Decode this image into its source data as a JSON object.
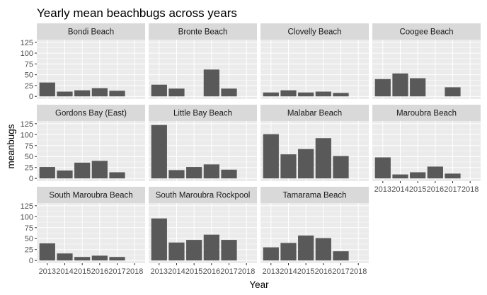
{
  "chart_data": {
    "type": "bar",
    "title": "Yearly mean beachbugs across years",
    "xlabel": "Year",
    "ylabel": "meanbugs",
    "x_ticks": [
      "2013",
      "2014",
      "2015",
      "2016",
      "2017",
      "2018"
    ],
    "y_ticks": [
      0,
      25,
      50,
      75,
      100,
      125
    ],
    "ylim": [
      0,
      125
    ],
    "grid": true,
    "colors": {
      "bar": "#595959",
      "panel_bg": "#ebebeb",
      "strip_bg": "#d9d9d9",
      "grid_major": "#ffffff"
    },
    "facets": [
      {
        "name": "Bondi Beach",
        "data": [
          {
            "year": "2013",
            "value": 32
          },
          {
            "year": "2014",
            "value": 11
          },
          {
            "year": "2015",
            "value": 14
          },
          {
            "year": "2016",
            "value": 19
          },
          {
            "year": "2017",
            "value": 13
          }
        ]
      },
      {
        "name": "Bronte Beach",
        "data": [
          {
            "year": "2013",
            "value": 27
          },
          {
            "year": "2014",
            "value": 18
          },
          {
            "year": "2016",
            "value": 62
          },
          {
            "year": "2017",
            "value": 18
          }
        ]
      },
      {
        "name": "Clovelly Beach",
        "data": [
          {
            "year": "2013",
            "value": 9
          },
          {
            "year": "2014",
            "value": 14
          },
          {
            "year": "2015",
            "value": 9
          },
          {
            "year": "2016",
            "value": 11
          },
          {
            "year": "2017",
            "value": 8
          }
        ]
      },
      {
        "name": "Coogee Beach",
        "data": [
          {
            "year": "2013",
            "value": 40
          },
          {
            "year": "2014",
            "value": 53
          },
          {
            "year": "2015",
            "value": 42
          },
          {
            "year": "2017",
            "value": 21
          }
        ]
      },
      {
        "name": "Gordons Bay (East)",
        "data": [
          {
            "year": "2013",
            "value": 26
          },
          {
            "year": "2014",
            "value": 18
          },
          {
            "year": "2015",
            "value": 36
          },
          {
            "year": "2016",
            "value": 40
          },
          {
            "year": "2017",
            "value": 14
          }
        ]
      },
      {
        "name": "Little Bay Beach",
        "data": [
          {
            "year": "2013",
            "value": 122
          },
          {
            "year": "2014",
            "value": 19
          },
          {
            "year": "2015",
            "value": 26
          },
          {
            "year": "2016",
            "value": 32
          },
          {
            "year": "2017",
            "value": 20
          }
        ]
      },
      {
        "name": "Malabar Beach",
        "data": [
          {
            "year": "2013",
            "value": 101
          },
          {
            "year": "2014",
            "value": 55
          },
          {
            "year": "2015",
            "value": 67
          },
          {
            "year": "2016",
            "value": 92
          },
          {
            "year": "2017",
            "value": 51
          }
        ]
      },
      {
        "name": "Maroubra Beach",
        "data": [
          {
            "year": "2013",
            "value": 48
          },
          {
            "year": "2014",
            "value": 9
          },
          {
            "year": "2015",
            "value": 14
          },
          {
            "year": "2016",
            "value": 27
          },
          {
            "year": "2017",
            "value": 11
          }
        ]
      },
      {
        "name": "South Maroubra Beach",
        "data": [
          {
            "year": "2013",
            "value": 39
          },
          {
            "year": "2014",
            "value": 16
          },
          {
            "year": "2015",
            "value": 8
          },
          {
            "year": "2016",
            "value": 11
          },
          {
            "year": "2017",
            "value": 8
          }
        ]
      },
      {
        "name": "South Maroubra Rockpool",
        "data": [
          {
            "year": "2013",
            "value": 96
          },
          {
            "year": "2014",
            "value": 41
          },
          {
            "year": "2015",
            "value": 47
          },
          {
            "year": "2016",
            "value": 59
          },
          {
            "year": "2017",
            "value": 47
          }
        ]
      },
      {
        "name": "Tamarama Beach",
        "data": [
          {
            "year": "2013",
            "value": 30
          },
          {
            "year": "2014",
            "value": 40
          },
          {
            "year": "2015",
            "value": 57
          },
          {
            "year": "2016",
            "value": 51
          },
          {
            "year": "2017",
            "value": 21
          }
        ]
      }
    ]
  }
}
